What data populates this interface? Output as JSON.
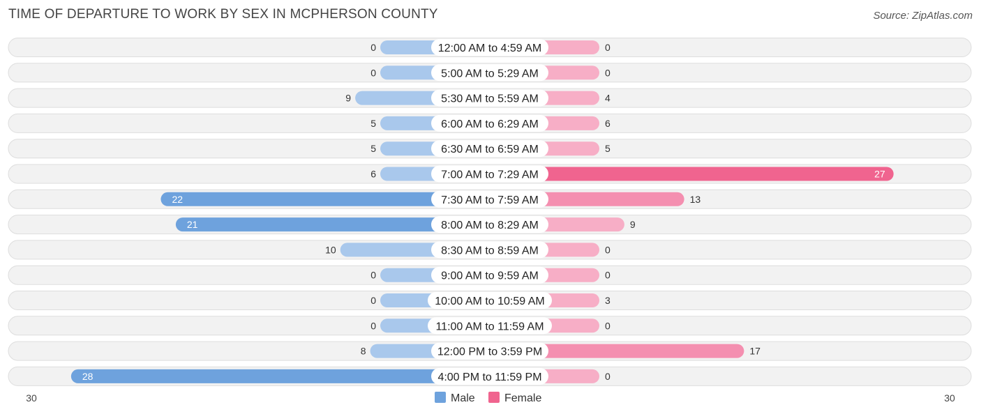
{
  "header": {
    "title": "TIME OF DEPARTURE TO WORK BY SEX IN MCPHERSON COUNTY",
    "source": "Source: ZipAtlas.com"
  },
  "colors": {
    "male_light": "#a9c8ec",
    "male_dark": "#6ea2dd",
    "female_light": "#f7aec6",
    "female_dark": "#f0648f",
    "row_bg": "#f2f2f2",
    "row_border": "#dddddd"
  },
  "chart_data": {
    "type": "bar",
    "orientation": "horizontal-diverging",
    "title": "TIME OF DEPARTURE TO WORK BY SEX IN MCPHERSON COUNTY",
    "categories": [
      "12:00 AM to 4:59 AM",
      "5:00 AM to 5:29 AM",
      "5:30 AM to 5:59 AM",
      "6:00 AM to 6:29 AM",
      "6:30 AM to 6:59 AM",
      "7:00 AM to 7:29 AM",
      "7:30 AM to 7:59 AM",
      "8:00 AM to 8:29 AM",
      "8:30 AM to 8:59 AM",
      "9:00 AM to 9:59 AM",
      "10:00 AM to 10:59 AM",
      "11:00 AM to 11:59 AM",
      "12:00 PM to 3:59 PM",
      "4:00 PM to 11:59 PM"
    ],
    "series": [
      {
        "name": "Male",
        "values": [
          0,
          0,
          9,
          5,
          5,
          6,
          22,
          21,
          10,
          0,
          0,
          0,
          8,
          28
        ]
      },
      {
        "name": "Female",
        "values": [
          0,
          0,
          4,
          6,
          5,
          27,
          13,
          9,
          0,
          0,
          3,
          0,
          17,
          0
        ]
      }
    ],
    "axis": {
      "min_label": "30",
      "max_label": "30",
      "range": [
        0,
        30
      ]
    },
    "legend": {
      "items": [
        "Male",
        "Female"
      ],
      "position": "bottom-center"
    }
  }
}
